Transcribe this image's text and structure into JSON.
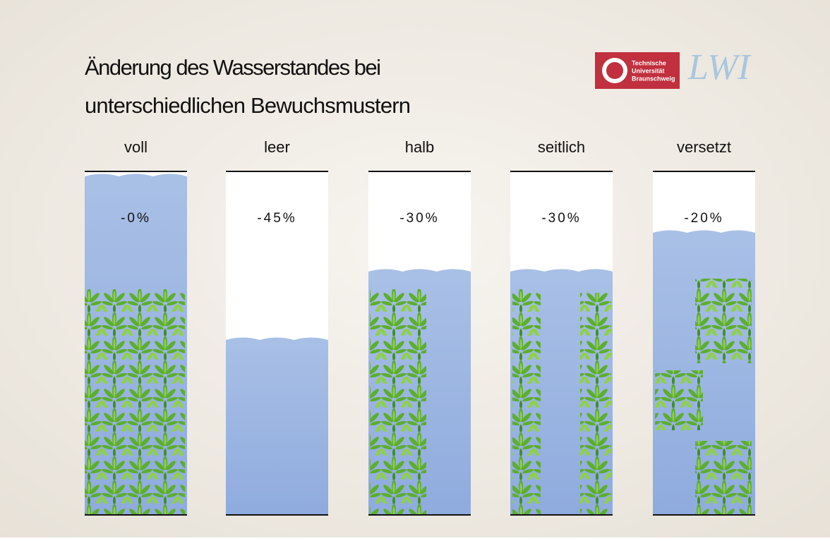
{
  "header": {
    "title_line1": "Änderung des Wasserstandes bei",
    "title_line2": "unterschiedlichen Bewuchsmustern"
  },
  "logos": {
    "tu_line1": "Technische",
    "tu_line2": "Universität",
    "tu_line3": "Braunschweig",
    "lwi": "LWI"
  },
  "panels": [
    {
      "label": "voll",
      "change": "-0%"
    },
    {
      "label": "leer",
      "change": "-45%"
    },
    {
      "label": "halb",
      "change": "-30%"
    },
    {
      "label": "seitlich",
      "change": "-30%"
    },
    {
      "label": "versetzt",
      "change": "-20%"
    }
  ]
}
